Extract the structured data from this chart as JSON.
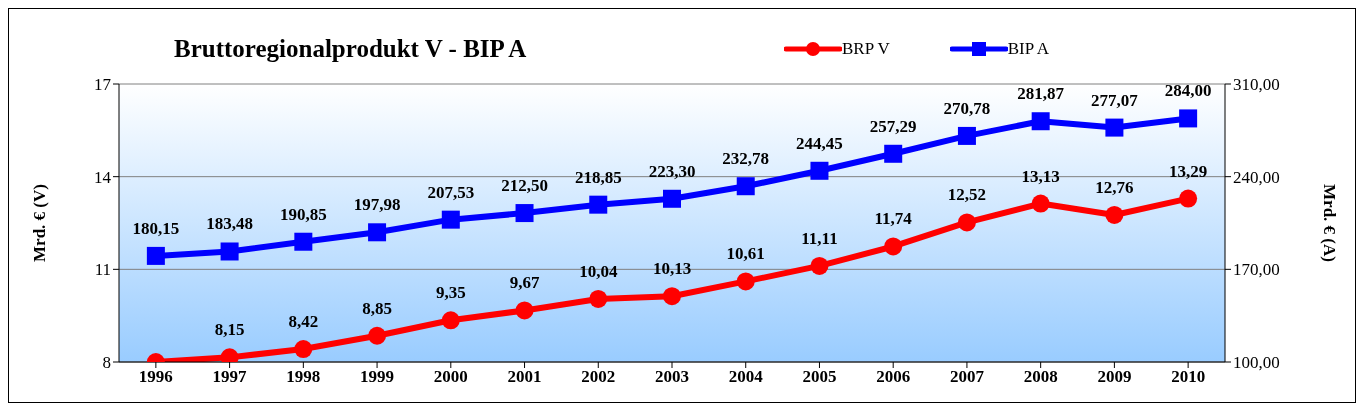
{
  "chart_data": {
    "type": "line",
    "title": "Bruttoregionalprodukt V - BIP A",
    "categories": [
      "1996",
      "1997",
      "1998",
      "1999",
      "2000",
      "2001",
      "2002",
      "2003",
      "2004",
      "2005",
      "2006",
      "2007",
      "2008",
      "2009",
      "2010"
    ],
    "series": [
      {
        "name": "BRP V",
        "color": "#ff0000",
        "marker": "circle",
        "values": [
          8,
          8.15,
          8.42,
          8.85,
          9.35,
          9.67,
          10.04,
          10.13,
          10.61,
          11.11,
          11.74,
          12.52,
          13.13,
          12.76,
          13.29
        ],
        "value_labels": [
          null,
          "8,15",
          "8,42",
          "8,85",
          "9,35",
          "9,67",
          "10,04",
          "10,13",
          "10,61",
          "11,11",
          "11,74",
          "12,52",
          "13,13",
          "12,76",
          "13,29"
        ]
      },
      {
        "name": "BIP A",
        "color": "#0000ff",
        "marker": "square",
        "axis": "y2",
        "values": [
          180.15,
          183.48,
          190.85,
          197.98,
          207.53,
          212.5,
          218.85,
          223.3,
          232.78,
          244.45,
          257.29,
          270.78,
          281.87,
          277.07,
          284.0
        ],
        "value_labels": [
          "180,15",
          "183,48",
          "190,85",
          "197,98",
          "207,53",
          "212,50",
          "218,85",
          "223,30",
          "232,78",
          "244,45",
          "257,29",
          "270,78",
          "281,87",
          "277,07",
          "284,00"
        ]
      }
    ],
    "ylabel": "Mrd. € (V)",
    "y2label": "Mrd. € (A)",
    "ylim": [
      8,
      17
    ],
    "yticks": [
      8,
      11,
      14,
      17
    ],
    "y2lim": [
      100,
      310
    ],
    "y2ticks": [
      {
        "value": 100,
        "label": "100,00"
      },
      {
        "value": 170,
        "label": "170,00"
      },
      {
        "value": 240,
        "label": "240,00"
      },
      {
        "value": 310,
        "label": "310,00"
      }
    ],
    "grid": "y",
    "legend": "top right",
    "line_style": "solid"
  }
}
